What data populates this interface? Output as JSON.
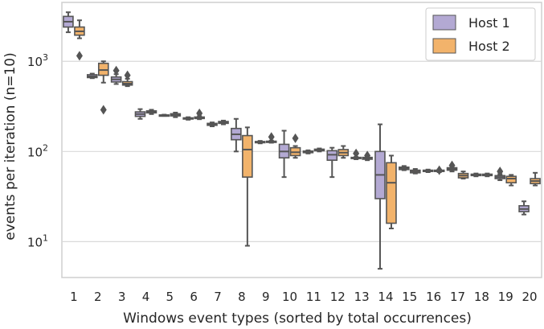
{
  "chart_data": {
    "type": "box",
    "xlabel": "Windows event types (sorted by total occurrences)",
    "ylabel": "events per iteration (n=10)",
    "yscale": "log",
    "ylim": [
      4,
      4500
    ],
    "yticks": [
      {
        "value": 10,
        "base": "10",
        "exp": "1"
      },
      {
        "value": 100,
        "base": "10",
        "exp": "2"
      },
      {
        "value": 1000,
        "base": "10",
        "exp": "3"
      }
    ],
    "grid": true,
    "legend_position": "top-right",
    "categories": [
      "1",
      "2",
      "3",
      "4",
      "5",
      "6",
      "7",
      "8",
      "9",
      "10",
      "11",
      "12",
      "13",
      "14",
      "15",
      "16",
      "17",
      "18",
      "19",
      "20"
    ],
    "series": [
      {
        "name": "Host 1",
        "color": "#b3a9d3",
        "boxes": [
          {
            "whislo": 2100,
            "q1": 2400,
            "med": 2750,
            "q3": 3150,
            "whishi": 3500,
            "fliers": []
          },
          {
            "whislo": 650,
            "q1": 660,
            "med": 680,
            "q3": 710,
            "whishi": 730,
            "fliers": []
          },
          {
            "whislo": 560,
            "q1": 590,
            "med": 630,
            "q3": 670,
            "whishi": 720,
            "fliers": [
              790
            ]
          },
          {
            "whislo": 230,
            "q1": 245,
            "med": 260,
            "q3": 275,
            "whishi": 295,
            "fliers": []
          },
          {
            "whislo": 248,
            "q1": 250,
            "med": 252,
            "q3": 254,
            "whishi": 256,
            "fliers": []
          },
          {
            "whislo": 225,
            "q1": 230,
            "med": 233,
            "q3": 236,
            "whishi": 240,
            "fliers": []
          },
          {
            "whislo": 190,
            "q1": 195,
            "med": 200,
            "q3": 205,
            "whishi": 210,
            "fliers": []
          },
          {
            "whislo": 100,
            "q1": 135,
            "med": 155,
            "q3": 180,
            "whishi": 230,
            "fliers": []
          },
          {
            "whislo": 123,
            "q1": 125,
            "med": 127,
            "q3": 129,
            "whishi": 131,
            "fliers": []
          },
          {
            "whislo": 52,
            "q1": 85,
            "med": 100,
            "q3": 120,
            "whishi": 170,
            "fliers": []
          },
          {
            "whislo": 95,
            "q1": 97,
            "med": 99,
            "q3": 101,
            "whishi": 103,
            "fliers": []
          },
          {
            "whislo": 52,
            "q1": 80,
            "med": 92,
            "q3": 102,
            "whishi": 110,
            "fliers": []
          },
          {
            "whislo": 82,
            "q1": 84,
            "med": 85,
            "q3": 86,
            "whishi": 87,
            "fliers": [
              95
            ]
          },
          {
            "whislo": 5,
            "q1": 30,
            "med": 55,
            "q3": 100,
            "whishi": 200,
            "fliers": []
          },
          {
            "whislo": 62,
            "q1": 63,
            "med": 65,
            "q3": 67,
            "whishi": 69,
            "fliers": []
          },
          {
            "whislo": 59,
            "q1": 60,
            "med": 61,
            "q3": 62,
            "whishi": 63,
            "fliers": []
          },
          {
            "whislo": 60,
            "q1": 62,
            "med": 64,
            "q3": 66,
            "whishi": 68,
            "fliers": [
              70
            ]
          },
          {
            "whislo": 53,
            "q1": 54,
            "med": 55,
            "q3": 56,
            "whishi": 57,
            "fliers": []
          },
          {
            "whislo": 48,
            "q1": 50,
            "med": 52,
            "q3": 54,
            "whishi": 56,
            "fliers": [
              60
            ]
          },
          {
            "whislo": 20,
            "q1": 21.5,
            "med": 23,
            "q3": 25,
            "whishi": 28,
            "fliers": []
          }
        ]
      },
      {
        "name": "Host 2",
        "color": "#f2b36b",
        "boxes": [
          {
            "whislo": 1800,
            "q1": 1950,
            "med": 2150,
            "q3": 2400,
            "whishi": 2850,
            "fliers": [
              1150
            ]
          },
          {
            "whislo": 580,
            "q1": 700,
            "med": 800,
            "q3": 950,
            "whishi": 1000,
            "fliers": [
              290
            ]
          },
          {
            "whislo": 530,
            "q1": 545,
            "med": 565,
            "q3": 595,
            "whishi": 640,
            "fliers": [
              700
            ]
          },
          {
            "whislo": 260,
            "q1": 268,
            "med": 275,
            "q3": 282,
            "whishi": 290,
            "fliers": []
          },
          {
            "whislo": 240,
            "q1": 248,
            "med": 255,
            "q3": 262,
            "whishi": 270,
            "fliers": []
          },
          {
            "whislo": 228,
            "q1": 232,
            "med": 236,
            "q3": 241,
            "whishi": 246,
            "fliers": [
              265
            ]
          },
          {
            "whislo": 200,
            "q1": 205,
            "med": 210,
            "q3": 215,
            "whishi": 220,
            "fliers": []
          },
          {
            "whislo": 9,
            "q1": 52,
            "med": 105,
            "q3": 150,
            "whishi": 185,
            "fliers": []
          },
          {
            "whislo": 125,
            "q1": 127,
            "med": 128,
            "q3": 130,
            "whishi": 132,
            "fliers": [
              145
            ]
          },
          {
            "whislo": 85,
            "q1": 90,
            "med": 98,
            "q3": 110,
            "whishi": 115,
            "fliers": [
              140
            ]
          },
          {
            "whislo": 100,
            "q1": 102,
            "med": 104,
            "q3": 106,
            "whishi": 108,
            "fliers": []
          },
          {
            "whislo": 85,
            "q1": 90,
            "med": 97,
            "q3": 105,
            "whishi": 115,
            "fliers": []
          },
          {
            "whislo": 80,
            "q1": 82,
            "med": 84,
            "q3": 86,
            "whishi": 88,
            "fliers": [
              90
            ]
          },
          {
            "whislo": 14,
            "q1": 16,
            "med": 45,
            "q3": 75,
            "whishi": 90,
            "fliers": []
          },
          {
            "whislo": 57,
            "q1": 58,
            "med": 60,
            "q3": 62,
            "whishi": 64,
            "fliers": []
          },
          {
            "whislo": 59,
            "q1": 60,
            "med": 61,
            "q3": 62,
            "whishi": 63,
            "fliers": [
              62
            ]
          },
          {
            "whislo": 50,
            "q1": 51,
            "med": 54,
            "q3": 57,
            "whishi": 60,
            "fliers": []
          },
          {
            "whislo": 53,
            "q1": 54,
            "med": 55,
            "q3": 56,
            "whishi": 57,
            "fliers": []
          },
          {
            "whislo": 42,
            "q1": 45,
            "med": 50,
            "q3": 53,
            "whishi": 55,
            "fliers": []
          },
          {
            "whislo": 42,
            "q1": 44,
            "med": 47,
            "q3": 50,
            "whishi": 58,
            "fliers": []
          }
        ]
      }
    ]
  }
}
